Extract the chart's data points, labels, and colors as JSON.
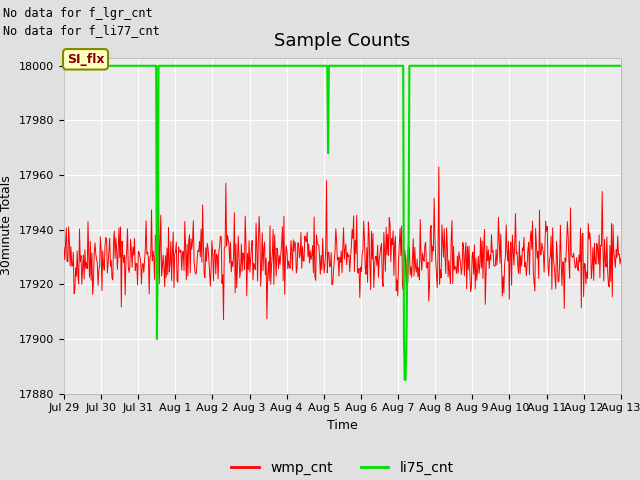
{
  "title": "Sample Counts",
  "ylabel": "30minute Totals",
  "xlabel": "Time",
  "no_data_text_1": "No data for f_lgr_cnt",
  "no_data_text_2": "No data for f_li77_cnt",
  "annotation_text": "SI_flx",
  "y_min": 17880,
  "y_max": 18000,
  "yticks": [
    17880,
    17900,
    17920,
    17940,
    17960,
    17980,
    18000
  ],
  "n_days": 15,
  "xtick_labels": [
    "Jul 29",
    "Jul 30",
    "Jul 31",
    "Aug 1",
    "Aug 2",
    "Aug 3",
    "Aug 4",
    "Aug 5",
    "Aug 6",
    "Aug 7",
    "Aug 8",
    "Aug 9",
    "Aug 10",
    "Aug 11",
    "Aug 12",
    "Aug 13"
  ],
  "wmp_base": 17930,
  "wmp_noise": 7,
  "wmp_color": "#ff0000",
  "li75_color": "#00dd00",
  "bg_color": "#e0e0e0",
  "plot_bg_color": "#ebebeb",
  "grid_color": "#ffffff",
  "seed": 42,
  "n_per_day": 48,
  "li75_drop1_day": 2.52,
  "li75_drop1_val": 17900,
  "li75_drop2_day": 7.12,
  "li75_drop2_val": 17968,
  "li75_drop3_day": 9.15,
  "li75_drop3_val": 17885,
  "title_fontsize": 13,
  "label_fontsize": 9,
  "tick_fontsize": 8,
  "legend_fontsize": 10
}
